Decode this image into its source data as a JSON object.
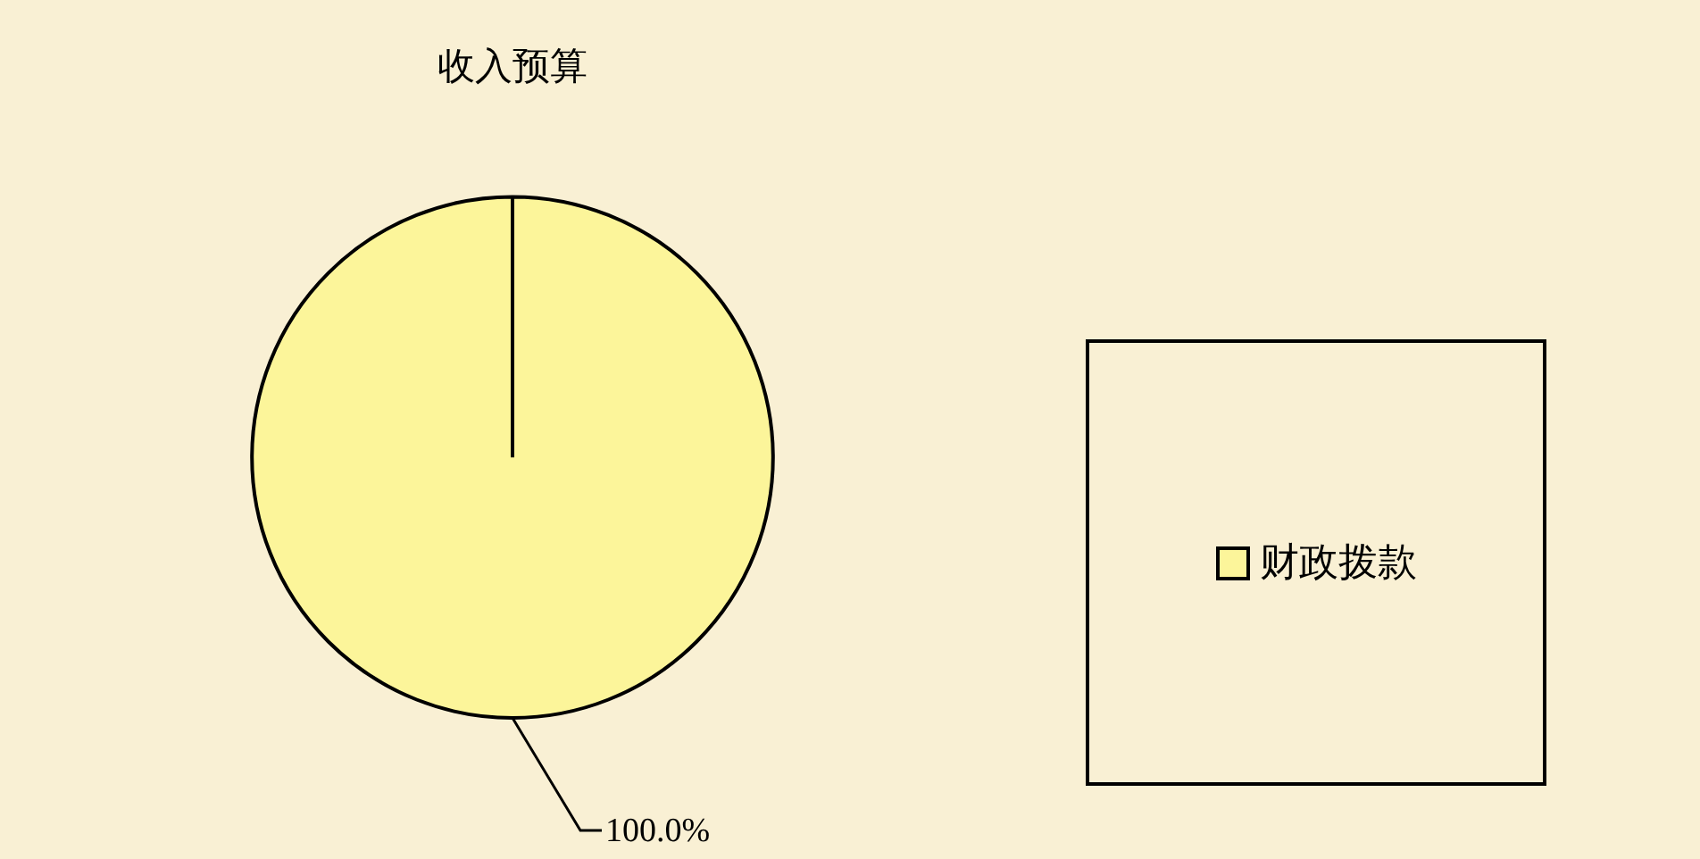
{
  "chart_data": {
    "type": "pie",
    "title": "收入预算",
    "categories": [
      "财政拨款"
    ],
    "values": [
      100
    ],
    "colors": [
      "#fcf59a"
    ],
    "value_labels": [
      "100.0%"
    ],
    "legend": "right"
  }
}
